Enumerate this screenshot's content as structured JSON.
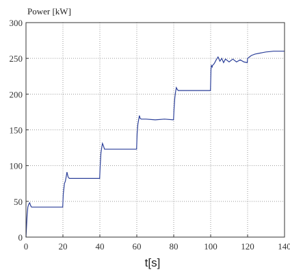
{
  "chart_data": {
    "type": "line",
    "title": "",
    "xlabel": "t[s]",
    "ylabel": "Power [kW]",
    "xlim": [
      0,
      140
    ],
    "ylim": [
      0,
      300
    ],
    "x_ticks": [
      0,
      20,
      40,
      60,
      80,
      100,
      120,
      140
    ],
    "y_ticks": [
      0,
      50,
      100,
      150,
      200,
      250,
      300
    ],
    "grid": true,
    "line_color": "#2b3f99",
    "series": [
      {
        "x": [
          0,
          0.3,
          0.6,
          1.0,
          1.5,
          2.0,
          2.5,
          3.0,
          3.5,
          4.0,
          6.0,
          10.0,
          15.0,
          19.9,
          20.2,
          20.8,
          21.3,
          21.8,
          22.2,
          22.8,
          23.5,
          26.0,
          30.0,
          35.0,
          39.9,
          40.2,
          40.6,
          41.0,
          41.4,
          41.9,
          42.5,
          45.0,
          50.0,
          55.0,
          59.9,
          60.2,
          60.6,
          61.0,
          61.4,
          61.8,
          62.4,
          65.0,
          70.0,
          75.0,
          79.9,
          80.2,
          80.6,
          81.0,
          81.4,
          81.8,
          82.4,
          85.0,
          90.0,
          95.0,
          99.9,
          100.2,
          100.4,
          100.8,
          101.0,
          102.0,
          103.0,
          104.0,
          105.0,
          106.0,
          107.0,
          108.0,
          110.0,
          112.0,
          114.0,
          116.0,
          118.0,
          119.8,
          120.0,
          121.0,
          122.0,
          124.0,
          126.0,
          128.0,
          130.0,
          132.0,
          134.0,
          136.0,
          138.0,
          140.0
        ],
        "y": [
          0,
          15,
          30,
          42,
          46,
          48,
          44,
          42,
          42,
          42,
          42,
          42,
          42,
          42,
          60,
          75,
          78,
          85,
          91,
          84,
          82,
          82,
          82,
          82,
          82,
          100,
          118,
          125,
          131,
          128,
          123,
          123,
          123,
          123,
          123,
          145,
          158,
          164,
          170,
          166,
          165,
          165,
          164,
          165,
          164,
          180,
          195,
          203,
          209,
          207,
          205,
          205,
          205,
          205,
          205,
          235,
          240,
          238,
          240,
          243,
          248,
          252,
          246,
          250,
          244,
          249,
          245,
          249,
          245,
          248,
          245,
          244,
          250,
          252,
          254,
          256,
          257,
          258,
          259,
          259.5,
          260,
          260,
          260,
          260
        ]
      }
    ]
  }
}
